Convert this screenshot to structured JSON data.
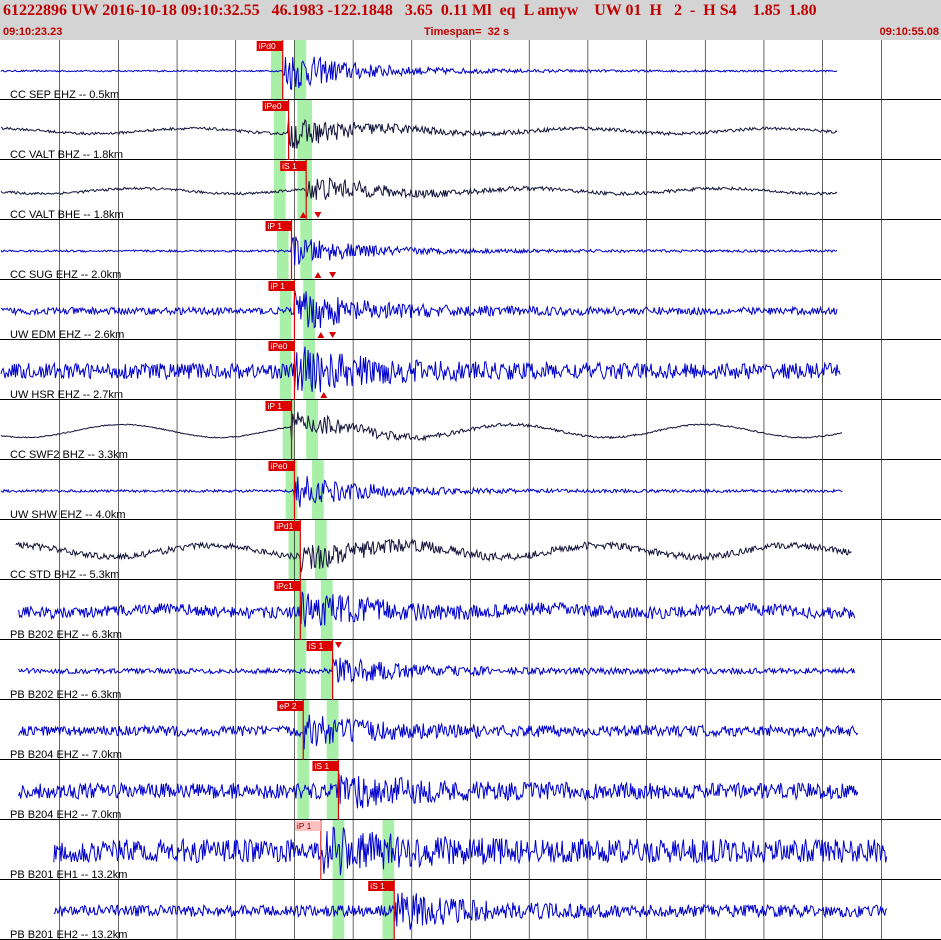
{
  "header": {
    "title": "61222896 UW 2016-10-18 09:10:32.55   46.1983 -122.1848   3.65  0.11 Ml  eq  L amyw    UW 01  H   2  -  H S4    1.85  1.80",
    "start_time": "09:10:23.23",
    "timespan": "Timespan=  32 s",
    "end_time": "09:10:55.08"
  },
  "colors": {
    "background": "#ffffff",
    "header_bg": "#d4d4d4",
    "header_text": "#c00000",
    "trace_blue": "#0000cc",
    "trace_dark": "#14143c",
    "pick_red": "#dd0000",
    "pick_pale": "#ffc0c0",
    "window_green": "#a8f0a8",
    "grid": "#000000",
    "label": "#000000"
  },
  "chart_data": {
    "type": "line",
    "title": "",
    "xlabel": "",
    "ylabel": "",
    "time_range_s": [
      0,
      32
    ],
    "grid_interval_s": 2,
    "traces": [
      {
        "label": "CC SEP EHZ -- 0.5km",
        "color": "blue",
        "picks": [
          {
            "text": "iPd0",
            "time": 9.6,
            "style": "red"
          }
        ],
        "triangles": [],
        "windows": [
          {
            "start": 9.2,
            "end": 9.6
          },
          {
            "start": 10.0,
            "end": 10.4
          }
        ],
        "noise": 0.03,
        "burst": 0.8,
        "long_period": 0,
        "start": 0,
        "end": 28.5
      },
      {
        "label": "CC VALT BHZ -- 1.8km",
        "color": "dark",
        "picks": [
          {
            "text": "iPe0",
            "time": 9.8,
            "style": "red"
          }
        ],
        "triangles": [],
        "windows": [
          {
            "start": 9.3,
            "end": 9.7
          },
          {
            "start": 10.1,
            "end": 10.6
          }
        ],
        "noise": 0.05,
        "burst": 0.55,
        "long_period": 0.1,
        "start": 0,
        "end": 28.5
      },
      {
        "label": "CC VALT BHE -- 1.8km",
        "color": "dark",
        "picks": [
          {
            "text": "iS 1",
            "time": 10.4,
            "style": "red"
          }
        ],
        "triangles": [
          {
            "time": 10.3,
            "dir": "up",
            "pos": "bottom"
          },
          {
            "time": 10.8,
            "dir": "down",
            "pos": "bottom"
          }
        ],
        "windows": [
          {
            "start": 9.3,
            "end": 9.7
          },
          {
            "start": 10.1,
            "end": 10.6
          }
        ],
        "noise": 0.05,
        "burst": 0.5,
        "long_period": 0.1,
        "start": 0,
        "end": 28.5
      },
      {
        "label": "CC SUG EHZ -- 2.0km",
        "color": "blue",
        "picks": [
          {
            "text": "iP 1",
            "time": 9.9,
            "style": "red"
          }
        ],
        "triangles": [
          {
            "time": 10.8,
            "dir": "up",
            "pos": "bottom"
          },
          {
            "time": 11.3,
            "dir": "down",
            "pos": "bottom"
          }
        ],
        "windows": [
          {
            "start": 9.4,
            "end": 9.8
          },
          {
            "start": 10.2,
            "end": 10.6
          }
        ],
        "noise": 0.04,
        "burst": 0.5,
        "long_period": 0,
        "start": 0,
        "end": 28.5
      },
      {
        "label": "UW EDM EHZ -- 2.6km",
        "color": "blue",
        "picks": [
          {
            "text": "iP 1",
            "time": 10.0,
            "style": "red"
          }
        ],
        "triangles": [
          {
            "time": 10.9,
            "dir": "up",
            "pos": "bottom"
          },
          {
            "time": 11.3,
            "dir": "down",
            "pos": "bottom"
          }
        ],
        "windows": [
          {
            "start": 9.5,
            "end": 9.9
          },
          {
            "start": 10.3,
            "end": 10.7
          }
        ],
        "noise": 0.14,
        "burst": 0.7,
        "long_period": 0,
        "start": 0,
        "end": 28.5
      },
      {
        "label": "UW HSR EHZ -- 2.7km",
        "color": "blue",
        "picks": [
          {
            "text": "iPe0",
            "time": 10.0,
            "style": "red"
          }
        ],
        "triangles": [
          {
            "time": 11.0,
            "dir": "up",
            "pos": "bottom"
          }
        ],
        "windows": [
          {
            "start": 9.5,
            "end": 9.9
          },
          {
            "start": 10.3,
            "end": 10.7
          }
        ],
        "noise": 0.3,
        "burst": 0.75,
        "long_period": 0,
        "start": 0,
        "end": 28.6
      },
      {
        "label": "CC SWF2 BHZ -- 3.3km",
        "color": "dark",
        "picks": [
          {
            "text": "iP 1",
            "time": 9.9,
            "style": "red"
          }
        ],
        "triangles": [],
        "windows": [
          {
            "start": 9.6,
            "end": 10.0
          },
          {
            "start": 10.4,
            "end": 10.8
          }
        ],
        "noise": 0.02,
        "burst": 0.55,
        "long_period": 0.25,
        "start": 0,
        "end": 28.7
      },
      {
        "label": "UW SHW EHZ -- 4.0km",
        "color": "blue",
        "picks": [
          {
            "text": "iPe0",
            "time": 10.0,
            "style": "red"
          }
        ],
        "triangles": [],
        "windows": [
          {
            "start": 9.7,
            "end": 10.1
          },
          {
            "start": 10.6,
            "end": 11.0
          }
        ],
        "noise": 0.05,
        "burst": 0.6,
        "long_period": 0,
        "start": 0,
        "end": 28.7
      },
      {
        "label": "CC STD BHZ -- 5.3km",
        "color": "dark",
        "picks": [
          {
            "text": "iPd1",
            "time": 10.2,
            "style": "red"
          }
        ],
        "triangles": [],
        "windows": [
          {
            "start": 9.8,
            "end": 10.2
          },
          {
            "start": 10.7,
            "end": 11.1
          }
        ],
        "noise": 0.12,
        "burst": 0.45,
        "long_period": 0.22,
        "start": 0.5,
        "end": 29.0
      },
      {
        "label": "PB B202 EHZ -- 6.3km",
        "color": "blue",
        "picks": [
          {
            "text": "iPc1",
            "time": 10.2,
            "style": "red"
          }
        ],
        "triangles": [],
        "windows": [
          {
            "start": 10.0,
            "end": 10.4
          },
          {
            "start": 10.9,
            "end": 11.3
          }
        ],
        "noise": 0.22,
        "burst": 0.55,
        "long_period": 0.08,
        "start": 0.6,
        "end": 29.1
      },
      {
        "label": "PB B202 EH2 -- 6.3km",
        "color": "blue",
        "picks": [
          {
            "text": "iS 1",
            "time": 11.3,
            "style": "red"
          }
        ],
        "triangles": [
          {
            "time": 11.5,
            "dir": "down",
            "pos": "top"
          }
        ],
        "windows": [
          {
            "start": 10.0,
            "end": 10.4
          },
          {
            "start": 10.9,
            "end": 11.3
          }
        ],
        "noise": 0.1,
        "burst": 0.45,
        "long_period": 0,
        "start": 0.6,
        "end": 29.1
      },
      {
        "label": "PB B204 EHZ -- 7.0km",
        "color": "blue",
        "picks": [
          {
            "text": "eP 2",
            "time": 10.3,
            "style": "red"
          }
        ],
        "triangles": [],
        "windows": [
          {
            "start": 10.1,
            "end": 10.5
          },
          {
            "start": 11.1,
            "end": 11.5
          }
        ],
        "noise": 0.2,
        "burst": 0.5,
        "long_period": 0,
        "start": 0.6,
        "end": 29.2
      },
      {
        "label": "PB B204 EH2 -- 7.0km",
        "color": "blue",
        "picks": [
          {
            "text": "iS 1",
            "time": 11.5,
            "style": "red"
          }
        ],
        "triangles": [],
        "windows": [
          {
            "start": 10.1,
            "end": 10.5
          },
          {
            "start": 11.1,
            "end": 11.5
          }
        ],
        "noise": 0.3,
        "burst": 0.5,
        "long_period": 0,
        "start": 0.6,
        "end": 29.2
      },
      {
        "label": "PB B201 EH1 -- 13.2km",
        "color": "blue",
        "picks": [
          {
            "text": "iP 1",
            "time": 10.9,
            "style": "pale"
          }
        ],
        "triangles": [],
        "windows": [
          {
            "start": 11.3,
            "end": 11.7
          },
          {
            "start": 13.0,
            "end": 13.4
          }
        ],
        "noise": 0.45,
        "burst": 0.6,
        "long_period": 0,
        "start": 1.8,
        "end": 30.2
      },
      {
        "label": "PB B201 EH2 -- 13.2km",
        "color": "blue",
        "picks": [
          {
            "text": "iS 1",
            "time": 13.4,
            "style": "red"
          }
        ],
        "triangles": [],
        "windows": [
          {
            "start": 11.3,
            "end": 11.7
          },
          {
            "start": 13.0,
            "end": 13.4
          }
        ],
        "noise": 0.22,
        "burst": 0.6,
        "long_period": 0,
        "start": 1.8,
        "end": 30.2
      }
    ]
  }
}
